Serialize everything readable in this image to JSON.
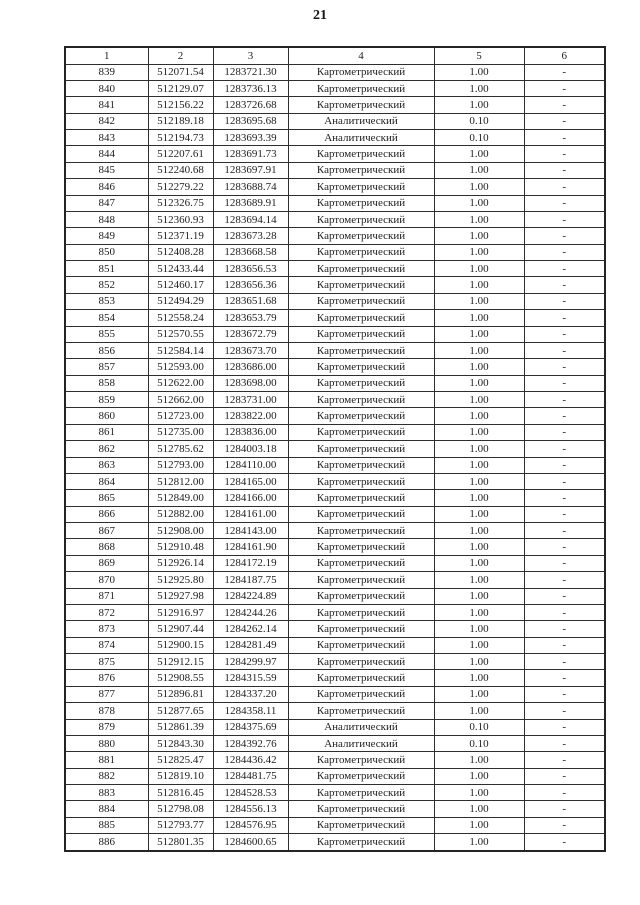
{
  "page_number": "21",
  "table": {
    "headers": [
      "1",
      "2",
      "3",
      "4",
      "5",
      "6"
    ],
    "rows": [
      [
        "839",
        "512071.54",
        "1283721.30",
        "Картометрический",
        "1.00",
        "-"
      ],
      [
        "840",
        "512129.07",
        "1283736.13",
        "Картометрический",
        "1.00",
        "-"
      ],
      [
        "841",
        "512156.22",
        "1283726.68",
        "Картометрический",
        "1.00",
        "-"
      ],
      [
        "842",
        "512189.18",
        "1283695.68",
        "Аналитический",
        "0.10",
        "-"
      ],
      [
        "843",
        "512194.73",
        "1283693.39",
        "Аналитический",
        "0.10",
        "-"
      ],
      [
        "844",
        "512207.61",
        "1283691.73",
        "Картометрический",
        "1.00",
        "-"
      ],
      [
        "845",
        "512240.68",
        "1283697.91",
        "Картометрический",
        "1.00",
        "-"
      ],
      [
        "846",
        "512279.22",
        "1283688.74",
        "Картометрический",
        "1.00",
        "-"
      ],
      [
        "847",
        "512326.75",
        "1283689.91",
        "Картометрический",
        "1.00",
        "-"
      ],
      [
        "848",
        "512360.93",
        "1283694.14",
        "Картометрический",
        "1.00",
        "-"
      ],
      [
        "849",
        "512371.19",
        "1283673.28",
        "Картометрический",
        "1.00",
        "-"
      ],
      [
        "850",
        "512408.28",
        "1283668.58",
        "Картометрический",
        "1.00",
        "-"
      ],
      [
        "851",
        "512433.44",
        "1283656.53",
        "Картометрический",
        "1.00",
        "-"
      ],
      [
        "852",
        "512460.17",
        "1283656.36",
        "Картометрический",
        "1.00",
        "-"
      ],
      [
        "853",
        "512494.29",
        "1283651.68",
        "Картометрический",
        "1.00",
        "-"
      ],
      [
        "854",
        "512558.24",
        "1283653.79",
        "Картометрический",
        "1.00",
        "-"
      ],
      [
        "855",
        "512570.55",
        "1283672.79",
        "Картометрический",
        "1.00",
        "-"
      ],
      [
        "856",
        "512584.14",
        "1283673.70",
        "Картометрический",
        "1.00",
        "-"
      ],
      [
        "857",
        "512593.00",
        "1283686.00",
        "Картометрический",
        "1.00",
        "-"
      ],
      [
        "858",
        "512622.00",
        "1283698.00",
        "Картометрический",
        "1.00",
        "-"
      ],
      [
        "859",
        "512662.00",
        "1283731.00",
        "Картометрический",
        "1.00",
        "-"
      ],
      [
        "860",
        "512723.00",
        "1283822.00",
        "Картометрический",
        "1.00",
        "-"
      ],
      [
        "861",
        "512735.00",
        "1283836.00",
        "Картометрический",
        "1.00",
        "-"
      ],
      [
        "862",
        "512785.62",
        "1284003.18",
        "Картометрический",
        "1.00",
        "-"
      ],
      [
        "863",
        "512793.00",
        "1284110.00",
        "Картометрический",
        "1.00",
        "-"
      ],
      [
        "864",
        "512812.00",
        "1284165.00",
        "Картометрический",
        "1.00",
        "-"
      ],
      [
        "865",
        "512849.00",
        "1284166.00",
        "Картометрический",
        "1.00",
        "-"
      ],
      [
        "866",
        "512882.00",
        "1284161.00",
        "Картометрический",
        "1.00",
        "-"
      ],
      [
        "867",
        "512908.00",
        "1284143.00",
        "Картометрический",
        "1.00",
        "-"
      ],
      [
        "868",
        "512910.48",
        "1284161.90",
        "Картометрический",
        "1.00",
        "-"
      ],
      [
        "869",
        "512926.14",
        "1284172.19",
        "Картометрический",
        "1.00",
        "-"
      ],
      [
        "870",
        "512925.80",
        "1284187.75",
        "Картометрический",
        "1.00",
        "-"
      ],
      [
        "871",
        "512927.98",
        "1284224.89",
        "Картометрический",
        "1.00",
        "-"
      ],
      [
        "872",
        "512916.97",
        "1284244.26",
        "Картометрический",
        "1.00",
        "-"
      ],
      [
        "873",
        "512907.44",
        "1284262.14",
        "Картометрический",
        "1.00",
        "-"
      ],
      [
        "874",
        "512900.15",
        "1284281.49",
        "Картометрический",
        "1.00",
        "-"
      ],
      [
        "875",
        "512912.15",
        "1284299.97",
        "Картометрический",
        "1.00",
        "-"
      ],
      [
        "876",
        "512908.55",
        "1284315.59",
        "Картометрический",
        "1.00",
        "-"
      ],
      [
        "877",
        "512896.81",
        "1284337.20",
        "Картометрический",
        "1.00",
        "-"
      ],
      [
        "878",
        "512877.65",
        "1284358.11",
        "Картометрический",
        "1.00",
        "-"
      ],
      [
        "879",
        "512861.39",
        "1284375.69",
        "Аналитический",
        "0.10",
        "-"
      ],
      [
        "880",
        "512843.30",
        "1284392.76",
        "Аналитический",
        "0.10",
        "-"
      ],
      [
        "881",
        "512825.47",
        "1284436.42",
        "Картометрический",
        "1.00",
        "-"
      ],
      [
        "882",
        "512819.10",
        "1284481.75",
        "Картометрический",
        "1.00",
        "-"
      ],
      [
        "883",
        "512816.45",
        "1284528.53",
        "Картометрический",
        "1.00",
        "-"
      ],
      [
        "884",
        "512798.08",
        "1284556.13",
        "Картометрический",
        "1.00",
        "-"
      ],
      [
        "885",
        "512793.77",
        "1284576.95",
        "Картометрический",
        "1.00",
        "-"
      ],
      [
        "886",
        "512801.35",
        "1284600.65",
        "Картометрический",
        "1.00",
        "-"
      ]
    ]
  }
}
